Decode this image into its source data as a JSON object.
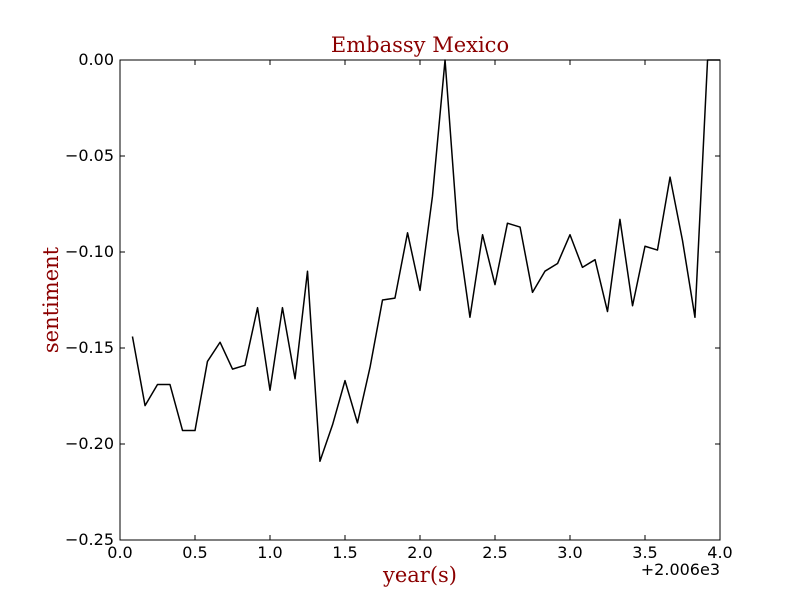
{
  "chart_data": {
    "type": "line",
    "title": "Embassy Mexico",
    "xlabel": "year(s)",
    "ylabel": "sentiment",
    "x_offset_label": "+2.006e3",
    "xlim": [
      0.0,
      4.0
    ],
    "ylim": [
      -0.25,
      0.0
    ],
    "x_ticks": [
      0.0,
      0.5,
      1.0,
      1.5,
      2.0,
      2.5,
      3.0,
      3.5,
      4.0
    ],
    "x_tick_labels": [
      "0.0",
      "0.5",
      "1.0",
      "1.5",
      "2.0",
      "2.5",
      "3.0",
      "3.5",
      "4.0"
    ],
    "y_ticks": [
      0.0,
      -0.05,
      -0.1,
      -0.15,
      -0.2,
      -0.25
    ],
    "y_tick_labels": [
      "0.00",
      "−0.05",
      "−0.10",
      "−0.15",
      "−0.20",
      "−0.25"
    ],
    "grid": false,
    "colors": {
      "label": "#8b0000",
      "line": "#000000",
      "axes": "#000000"
    },
    "series": [
      {
        "x": [
          0.083,
          0.167,
          0.25,
          0.333,
          0.417,
          0.5,
          0.583,
          0.667,
          0.75,
          0.833,
          0.917,
          1.0,
          1.083,
          1.167,
          1.25,
          1.333,
          1.417,
          1.5,
          1.583,
          1.667,
          1.75,
          1.833,
          1.917,
          2.0,
          2.083,
          2.167,
          2.25,
          2.333,
          2.417,
          2.5,
          2.583,
          2.667,
          2.75,
          2.833,
          2.917,
          3.0,
          3.083,
          3.167,
          3.25,
          3.333,
          3.417,
          3.5,
          3.583,
          3.667,
          3.75,
          3.833,
          3.917,
          4.0
        ],
        "y": [
          -0.144,
          -0.18,
          -0.169,
          -0.169,
          -0.193,
          -0.193,
          -0.157,
          -0.147,
          -0.161,
          -0.159,
          -0.129,
          -0.172,
          -0.129,
          -0.166,
          -0.11,
          -0.209,
          -0.19,
          -0.167,
          -0.189,
          -0.16,
          -0.125,
          -0.124,
          -0.09,
          -0.12,
          -0.071,
          0.0,
          -0.088,
          -0.134,
          -0.091,
          -0.117,
          -0.085,
          -0.087,
          -0.121,
          -0.11,
          -0.106,
          -0.091,
          -0.108,
          -0.104,
          -0.131,
          -0.083,
          -0.128,
          -0.097,
          -0.099,
          -0.061,
          -0.094,
          -0.134,
          0.0,
          0.0
        ]
      }
    ]
  }
}
